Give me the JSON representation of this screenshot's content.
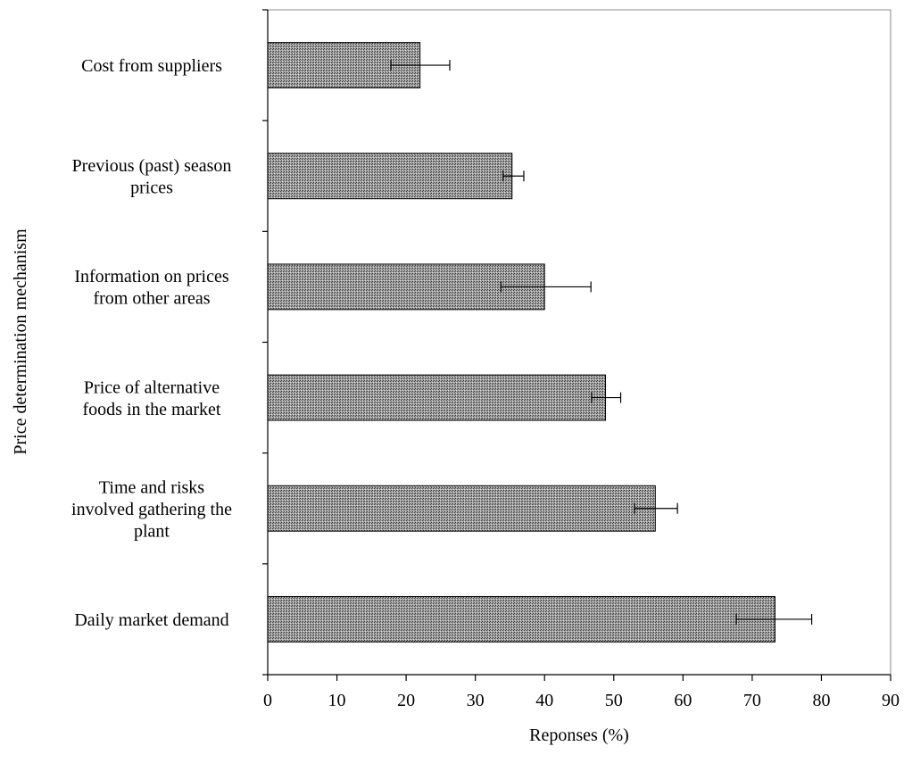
{
  "chart_data": {
    "type": "bar",
    "orientation": "horizontal",
    "title": "",
    "xlabel": "Reponses (%)",
    "ylabel": "Price determination mechanism",
    "xlim": [
      0,
      90
    ],
    "x_ticks": [
      0,
      10,
      20,
      30,
      40,
      50,
      60,
      70,
      80,
      90
    ],
    "grid": false,
    "legend": "none",
    "bar_fill": "hatched gray",
    "categories": [
      [
        "Cost from suppliers"
      ],
      [
        "Previous (past) season",
        "prices"
      ],
      [
        "Information on prices",
        "from other areas"
      ],
      [
        "Price of alternative",
        "foods in the market"
      ],
      [
        "Time and risks",
        "involved gathering the",
        "plant"
      ],
      [
        "Daily market demand"
      ]
    ],
    "values": [
      22,
      35.3,
      40,
      48.8,
      56,
      73.3
    ],
    "error_low": [
      17.8,
      34,
      33.7,
      46.8,
      53,
      67.7
    ],
    "error_high": [
      26.3,
      37,
      46.7,
      51,
      59.2,
      78.6
    ]
  }
}
